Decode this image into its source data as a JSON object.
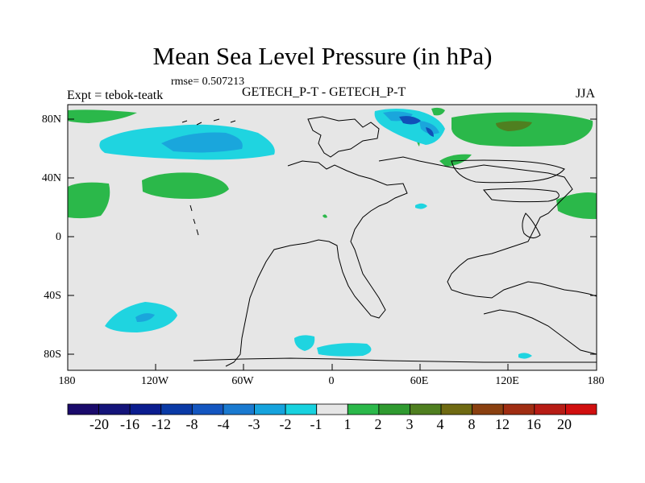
{
  "title": "Mean Sea Level Pressure (in hPa)",
  "rmse": "rmse= 0.507213",
  "experiment": "Expt = tebok-teatk",
  "comparison": "GETECH_P-T - GETECH_P-T",
  "season": "JJA",
  "axes": {
    "lat_labels": [
      "80N",
      "40N",
      "0",
      "40S",
      "80S"
    ],
    "lon_labels": [
      "180",
      "120W",
      "60W",
      "0",
      "60E",
      "120E",
      "180"
    ]
  },
  "legend": {
    "levels": [
      "-20",
      "-16",
      "-12",
      "-8",
      "-4",
      "-3",
      "-2",
      "-1",
      "1",
      "2",
      "3",
      "4",
      "8",
      "12",
      "16",
      "20"
    ],
    "colors": [
      "#1a0a6b",
      "#14147a",
      "#0b1d8f",
      "#0a3aa6",
      "#1456c0",
      "#1a7ad0",
      "#16a3dd",
      "#18d2df",
      "#e6e6e6",
      "#2bb84a",
      "#2f9a30",
      "#4f7f20",
      "#6f6a12",
      "#8a4010",
      "#a02d12",
      "#b71c15",
      "#d10f0f"
    ]
  },
  "colors": {
    "land_bg": "#e6e6e6",
    "neg_small": "#1fd4e0",
    "neg_mid": "#1aa6dc",
    "neg_strong": "#1050b8",
    "pos_small": "#2bb84a",
    "pos_mid": "#4f7f20"
  }
}
